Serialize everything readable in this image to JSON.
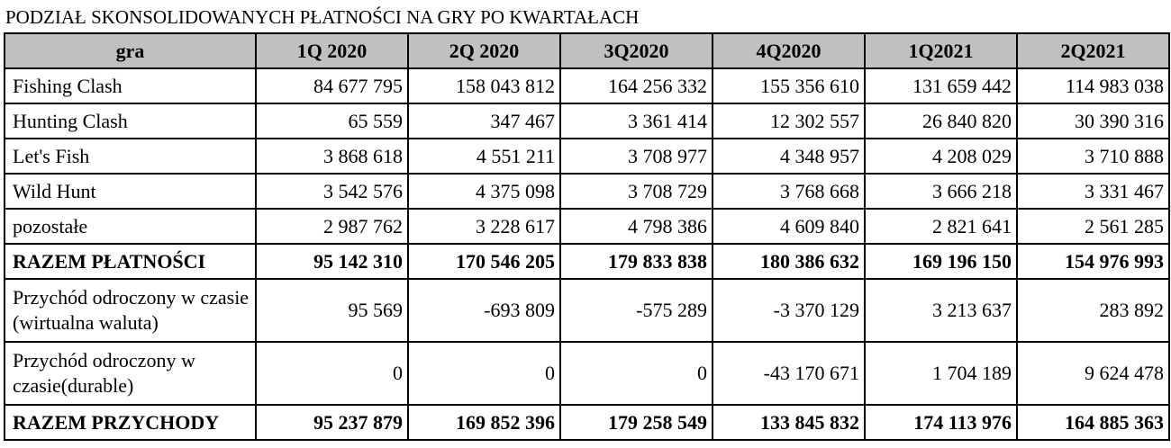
{
  "title": "PODZIAŁ SKONSOLIDOWANYCH PŁATNOŚCI NA GRY PO KWARTAŁACH",
  "table": {
    "headers": [
      "gra",
      "1Q 2020",
      "2Q 2020",
      "3Q2020",
      "4Q2020",
      "1Q2021",
      "2Q2021"
    ],
    "rows": [
      {
        "label": "Fishing Clash",
        "values": [
          "84 677 795",
          "158 043 812",
          "164 256 332",
          "155 356 610",
          "131 659 442",
          "114 983 038"
        ]
      },
      {
        "label": "Hunting Clash",
        "values": [
          "65 559",
          "347 467",
          "3 361 414",
          "12 302 557",
          "26 840 820",
          "30 390 316"
        ]
      },
      {
        "label": "Let's Fish",
        "values": [
          "3 868 618",
          "4 551 211",
          "3 708 977",
          "4 348 957",
          "4 208 029",
          "3 710 888"
        ]
      },
      {
        "label": "Wild Hunt",
        "values": [
          "3 542 576",
          "4 375 098",
          "3 708 729",
          "3 768 668",
          "3 666 218",
          "3 331 467"
        ]
      },
      {
        "label": "pozostałe",
        "values": [
          "2 987 762",
          "3 228 617",
          "4 798 386",
          "4 609 840",
          "2 821 641",
          "2 561 285"
        ]
      },
      {
        "label": "RAZEM PŁATNOŚCI",
        "values": [
          "95 142 310",
          "170 546 205",
          "179 833 838",
          "180 386 632",
          "169 196 150",
          "154 976 993"
        ]
      },
      {
        "label": "Przychód odroczony w czasie (wirtualna waluta)",
        "values": [
          "95 569",
          "-693 809",
          "-575 289",
          "-3 370 129",
          "3 213 637",
          "283 892"
        ]
      },
      {
        "label": "Przychód odroczony w czasie(durable)",
        "values": [
          "0",
          "0",
          "0",
          "-43 170 671",
          "1 704 189",
          "9 624 478"
        ]
      },
      {
        "label": "RAZEM PRZYCHODY",
        "values": [
          "95 237 879",
          "169 852 396",
          "179 258 549",
          "133 845 832",
          "174 113 976",
          "164 885 363"
        ]
      }
    ]
  },
  "colors": {
    "header_background": "#c0c0c0",
    "border": "#000000",
    "background": "#ffffff"
  }
}
